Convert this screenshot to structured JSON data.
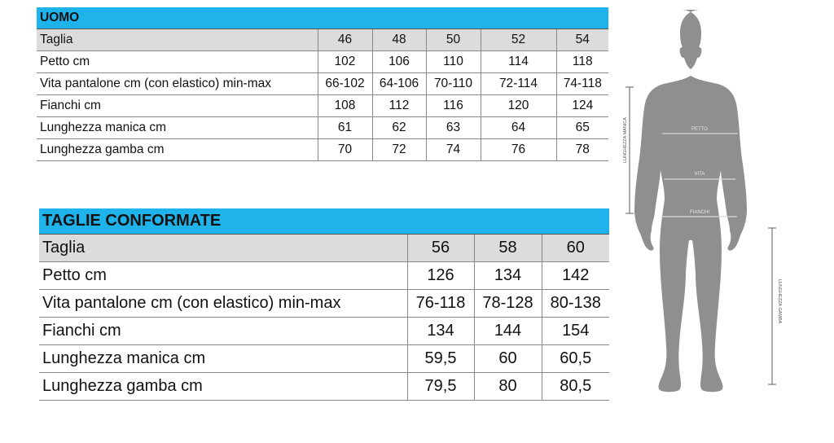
{
  "uomo": {
    "title": "UOMO",
    "sizes": [
      "46",
      "48",
      "50",
      "52",
      "54"
    ],
    "rows": [
      {
        "label": "Taglia",
        "values": [
          "46",
          "48",
          "50",
          "52",
          "54"
        ]
      },
      {
        "label": "Petto cm",
        "values": [
          "102",
          "106",
          "110",
          "114",
          "118"
        ]
      },
      {
        "label": "Vita pantalone cm (con elastico) min-max",
        "values": [
          "66-102",
          "64-106",
          "70-110",
          "72-114",
          "74-118"
        ]
      },
      {
        "label": "Fianchi cm",
        "values": [
          "108",
          "112",
          "116",
          "120",
          "124"
        ]
      },
      {
        "label": "Lunghezza manica cm",
        "values": [
          "61",
          "62",
          "63",
          "64",
          "65"
        ]
      },
      {
        "label": "Lunghezza gamba cm",
        "values": [
          "70",
          "72",
          "74",
          "76",
          "78"
        ]
      }
    ]
  },
  "conformate": {
    "title": "TAGLIE CONFORMATE",
    "rows": [
      {
        "label": "Taglia",
        "values": [
          "56",
          "58",
          "60"
        ]
      },
      {
        "label": "Petto cm",
        "values": [
          "126",
          "134",
          "142"
        ]
      },
      {
        "label": "Vita pantalone cm (con elastico) min-max",
        "values": [
          "76-118",
          "78-128",
          "80-138"
        ]
      },
      {
        "label": "Fianchi cm",
        "values": [
          "134",
          "144",
          "154"
        ]
      },
      {
        "label": "Lunghezza manica cm",
        "values": [
          "59,5",
          "60",
          "60,5"
        ]
      },
      {
        "label": "Lunghezza gamba cm",
        "values": [
          "79,5",
          "80",
          "80,5"
        ]
      }
    ]
  },
  "figure": {
    "petto": "PETTO",
    "vita": "VITA",
    "fianchi": "FIANCHI",
    "manica": "LUNGHEZZA MANICA",
    "gamba": "LUNGHEZZA GAMBA"
  },
  "colors": {
    "header": "#1eb3ea",
    "size_row": "#dcdcdc",
    "silhouette": "#8f8f8f"
  }
}
